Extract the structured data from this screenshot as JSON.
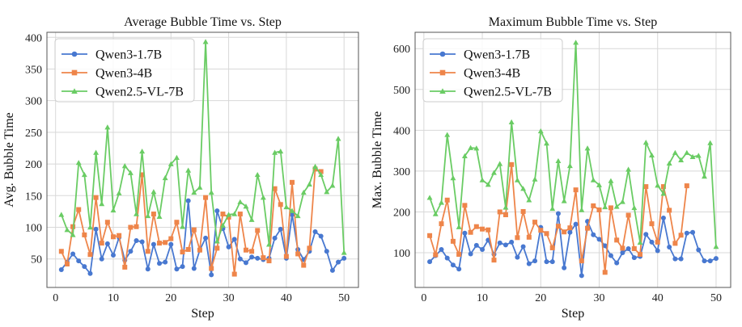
{
  "colors": {
    "Qwen3-1.7B": "#4878d0",
    "Qwen3-4B": "#ee854a",
    "Qwen2.5-VL-7B": "#6acc64",
    "grid": "#d8d8d8",
    "frame": "#555555"
  },
  "chart_data": [
    {
      "type": "line",
      "title": "Average Bubble Time vs. Step",
      "xlabel": "Step",
      "ylabel": "Avg. Bubble Time",
      "xlim": [
        -1.5,
        52.5
      ],
      "ylim": [
        5,
        408
      ],
      "xticks": [
        0,
        10,
        20,
        30,
        40,
        50
      ],
      "yticks": [
        50,
        100,
        150,
        200,
        250,
        300,
        350,
        400
      ],
      "grid": true,
      "legend_position": "top-left",
      "x": [
        1,
        2,
        3,
        4,
        5,
        6,
        7,
        8,
        9,
        10,
        11,
        12,
        13,
        14,
        15,
        16,
        17,
        18,
        19,
        20,
        21,
        22,
        23,
        24,
        25,
        26,
        27,
        28,
        29,
        30,
        31,
        32,
        33,
        34,
        35,
        36,
        37,
        38,
        39,
        40,
        41,
        42,
        43,
        44,
        45,
        46,
        47,
        48,
        49,
        50
      ],
      "series": [
        {
          "name": "Qwen3-1.7B",
          "marker": "circle",
          "values": [
            33,
            45,
            58,
            47,
            38,
            27,
            97,
            50,
            74,
            56,
            84,
            48,
            62,
            79,
            77,
            34,
            73,
            43,
            45,
            73,
            34,
            38,
            142,
            35,
            64,
            83,
            25,
            126,
            98,
            69,
            81,
            50,
            44,
            53,
            51,
            49,
            51,
            83,
            97,
            51,
            120,
            65,
            49,
            62,
            93,
            86,
            62,
            32,
            45,
            51
          ]
        },
        {
          "name": "Qwen3-4B",
          "marker": "square",
          "values": [
            62,
            42,
            101,
            128,
            88,
            57,
            147,
            75,
            108,
            85,
            87,
            37,
            100,
            101,
            183,
            62,
            121,
            75,
            76,
            82,
            108,
            61,
            65,
            96,
            64,
            147,
            35,
            67,
            121,
            116,
            26,
            121,
            64,
            62,
            95,
            52,
            47,
            161,
            136,
            54,
            171,
            58,
            40,
            67,
            192,
            188,
            null,
            null,
            null,
            null
          ]
        },
        {
          "name": "Qwen2.5-VL-7B",
          "marker": "triangle",
          "values": [
            120,
            96,
            88,
            202,
            183,
            100,
            218,
            137,
            258,
            127,
            154,
            197,
            186,
            121,
            220,
            118,
            156,
            117,
            178,
            200,
            210,
            101,
            190,
            155,
            163,
            393,
            155,
            78,
            103,
            120,
            121,
            140,
            133,
            112,
            183,
            147,
            73,
            218,
            220,
            132,
            126,
            118,
            155,
            168,
            196,
            183,
            156,
            166,
            240,
            60
          ]
        }
      ]
    },
    {
      "type": "line",
      "title": "Maximum Bubble Time vs. Step",
      "xlabel": "Step",
      "ylabel": "Max. Bubble Time",
      "xlim": [
        -1.5,
        52.5
      ],
      "ylim": [
        15,
        640
      ],
      "xticks": [
        0,
        10,
        20,
        30,
        40,
        50
      ],
      "yticks": [
        100,
        200,
        300,
        400,
        500,
        600
      ],
      "grid": true,
      "legend_position": "top-left",
      "x": [
        1,
        2,
        3,
        4,
        5,
        6,
        7,
        8,
        9,
        10,
        11,
        12,
        13,
        14,
        15,
        16,
        17,
        18,
        19,
        20,
        21,
        22,
        23,
        24,
        25,
        26,
        27,
        28,
        29,
        30,
        31,
        32,
        33,
        34,
        35,
        36,
        37,
        38,
        39,
        40,
        41,
        42,
        43,
        44,
        45,
        46,
        47,
        48,
        49,
        50
      ],
      "series": [
        {
          "name": "Qwen3-1.7B",
          "marker": "circle",
          "values": [
            78,
            93,
            108,
            87,
            70,
            60,
            148,
            97,
            118,
            108,
            131,
            96,
            124,
            119,
            126,
            89,
            115,
            73,
            80,
            162,
            78,
            78,
            196,
            63,
            150,
            170,
            44,
            177,
            144,
            133,
            117,
            93,
            75,
            100,
            110,
            88,
            91,
            145,
            126,
            105,
            185,
            114,
            85,
            85,
            148,
            150,
            107,
            80,
            80,
            86
          ]
        },
        {
          "name": "Qwen3-4B",
          "marker": "square",
          "values": [
            142,
            95,
            171,
            229,
            128,
            96,
            216,
            150,
            164,
            158,
            156,
            82,
            200,
            193,
            316,
            137,
            201,
            138,
            175,
            155,
            147,
            112,
            165,
            151,
            161,
            254,
            80,
            160,
            215,
            205,
            52,
            210,
            131,
            111,
            192,
            110,
            96,
            262,
            171,
            126,
            262,
            204,
            123,
            143,
            264,
            null,
            null,
            null,
            null,
            null
          ]
        },
        {
          "name": "Qwen2.5-VL-7B",
          "marker": "triangle",
          "values": [
            235,
            195,
            223,
            389,
            283,
            163,
            337,
            357,
            356,
            278,
            267,
            296,
            318,
            211,
            420,
            278,
            257,
            229,
            280,
            398,
            368,
            208,
            325,
            227,
            313,
            615,
            205,
            356,
            278,
            266,
            212,
            276,
            213,
            225,
            304,
            210,
            125,
            370,
            339,
            265,
            245,
            319,
            345,
            327,
            345,
            335,
            338,
            287,
            369,
            115
          ]
        }
      ]
    }
  ]
}
